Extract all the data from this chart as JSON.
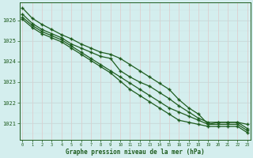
{
  "x": [
    0,
    1,
    2,
    3,
    4,
    5,
    6,
    7,
    8,
    9,
    10,
    11,
    12,
    13,
    14,
    15,
    16,
    17,
    18,
    19,
    20,
    21,
    22,
    23
  ],
  "line1": [
    1026.6,
    1026.1,
    1025.8,
    1025.55,
    1025.3,
    1025.1,
    1024.85,
    1024.65,
    1024.45,
    1024.35,
    1024.15,
    1023.85,
    1023.55,
    1023.25,
    1022.95,
    1022.65,
    1022.15,
    1021.75,
    1021.45,
    1020.95,
    1021.05,
    1021.05,
    1021.05,
    1020.95
  ],
  "line2": [
    1026.3,
    1025.85,
    1025.55,
    1025.35,
    1025.15,
    1024.85,
    1024.65,
    1024.45,
    1024.25,
    1024.15,
    1023.55,
    1023.25,
    1023.0,
    1022.8,
    1022.5,
    1022.2,
    1021.85,
    1021.55,
    1021.25,
    1021.05,
    1021.05,
    1021.05,
    1021.05,
    1020.75
  ],
  "line3": [
    1026.15,
    1025.75,
    1025.45,
    1025.25,
    1025.05,
    1024.75,
    1024.45,
    1024.15,
    1023.85,
    1023.55,
    1023.25,
    1022.95,
    1022.65,
    1022.35,
    1022.05,
    1021.75,
    1021.55,
    1021.35,
    1021.15,
    1020.95,
    1020.95,
    1020.95,
    1020.95,
    1020.65
  ],
  "line4": [
    1026.05,
    1025.65,
    1025.35,
    1025.15,
    1024.95,
    1024.65,
    1024.35,
    1024.05,
    1023.75,
    1023.45,
    1023.05,
    1022.65,
    1022.35,
    1022.05,
    1021.75,
    1021.45,
    1021.15,
    1021.05,
    1020.95,
    1020.85,
    1020.85,
    1020.85,
    1020.85,
    1020.55
  ],
  "line_color": "#1e5c1e",
  "bg_color": "#d4eeee",
  "grid_color": "#c8d8d8",
  "grid_color_v": "#e0c8c8",
  "xlabel": "Graphe pression niveau de la mer (hPa)",
  "xlabel_color": "#1e5c1e",
  "ylabel_ticks": [
    1021,
    1022,
    1023,
    1024,
    1025,
    1026
  ],
  "ylim": [
    1020.2,
    1026.85
  ],
  "xlim": [
    -0.3,
    23.3
  ]
}
